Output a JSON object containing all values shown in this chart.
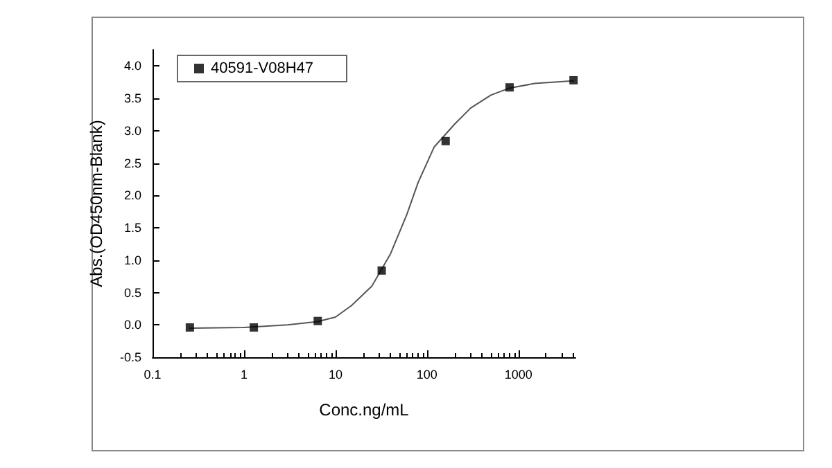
{
  "chart_data": {
    "type": "scatter",
    "xlabel": "Conc.ng/mL",
    "ylabel": "Abs.(OD450nm-Blank)",
    "log": "x",
    "xlim": [
      0.1,
      4200
    ],
    "xticks": [
      0.1,
      1,
      10,
      100,
      1000
    ],
    "ylim": [
      -0.5,
      4.25
    ],
    "yticks": [
      {
        "value": -0.5,
        "label": "-0.5"
      },
      {
        "value": 0,
        "label": "0.0"
      },
      {
        "value": 0.5,
        "label": "0.5"
      },
      {
        "value": 1,
        "label": "1.0"
      },
      {
        "value": 1.5,
        "label": "1.5"
      },
      {
        "value": 2,
        "label": "2.0"
      },
      {
        "value": 2.5,
        "label": "2.5"
      },
      {
        "value": 3,
        "label": "3.0"
      },
      {
        "value": 3.5,
        "label": "3.5"
      },
      {
        "value": 4,
        "label": "4.0"
      }
    ],
    "grid": false,
    "legend": "top left",
    "marker": "square",
    "series": [
      {
        "name": "40591-V08H47",
        "color": "#000000",
        "x": [
          0.256,
          1.28,
          6.4,
          32,
          160,
          800,
          4000
        ],
        "values": [
          -0.04,
          -0.04,
          0.06,
          0.84,
          2.84,
          3.67,
          3.78
        ]
      },
      {
        "type": "line",
        "color": "#555555",
        "marker": "none",
        "line_style": "solid",
        "x": [
          0.256,
          1,
          3,
          6.4,
          10,
          15,
          25,
          40,
          60,
          80,
          120,
          200,
          300,
          500,
          800,
          1500,
          4000
        ],
        "values": [
          -0.05,
          -0.04,
          0.0,
          0.05,
          0.12,
          0.3,
          0.6,
          1.1,
          1.7,
          2.2,
          2.75,
          3.1,
          3.35,
          3.55,
          3.66,
          3.73,
          3.77
        ]
      }
    ]
  }
}
